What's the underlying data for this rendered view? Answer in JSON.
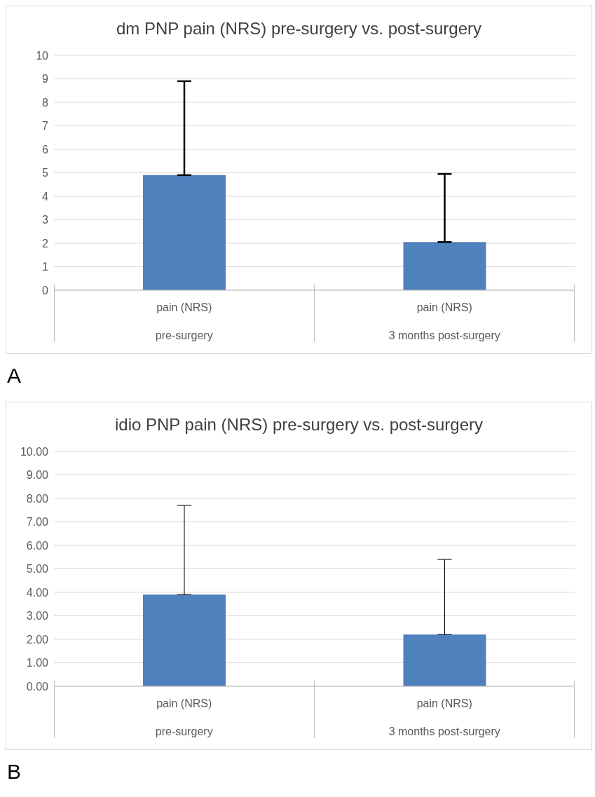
{
  "chart_data": [
    {
      "type": "bar",
      "title": "dm PNP pain (NRS) pre-surgery vs. post-surgery",
      "categories": [
        "pain (NRS)\npre-surgery",
        "pain (NRS)\n3 months post-surgery"
      ],
      "values": [
        4.9,
        2.05
      ],
      "errors": [
        [
          4.9,
          8.9
        ],
        [
          2.05,
          4.95
        ]
      ],
      "color": "#4f81bd",
      "ylim": [
        0,
        10
      ],
      "yticks": [
        0,
        1,
        2,
        3,
        4,
        5,
        6,
        7,
        8,
        9,
        10
      ],
      "grid": "y",
      "legend": false,
      "annotations": [
        "A"
      ]
    },
    {
      "type": "bar",
      "title": "idio PNP pain (NRS) pre-surgery vs. post-surgery",
      "categories": [
        "pain (NRS)\npre-surgery",
        "pain (NRS)\n3 months post-surgery"
      ],
      "values": [
        3.9,
        2.2
      ],
      "errors": [
        [
          3.9,
          7.7
        ],
        [
          2.2,
          5.4
        ]
      ],
      "color": "#4f81bd",
      "ylim": [
        0,
        10
      ],
      "yticks": [
        {
          "value": 0,
          "label": "0.00"
        },
        {
          "value": 1,
          "label": "1.00"
        },
        {
          "value": 2,
          "label": "2.00"
        },
        {
          "value": 3,
          "label": "3.00"
        },
        {
          "value": 4,
          "label": "4.00"
        },
        {
          "value": 5,
          "label": "5.00"
        },
        {
          "value": 6,
          "label": "6.00"
        },
        {
          "value": 7,
          "label": "7.00"
        },
        {
          "value": 8,
          "label": "8.00"
        },
        {
          "value": 9,
          "label": "9.00"
        },
        {
          "value": 10,
          "label": "10.00"
        }
      ],
      "grid": "y",
      "legend": false,
      "annotations": [
        "B"
      ]
    }
  ]
}
